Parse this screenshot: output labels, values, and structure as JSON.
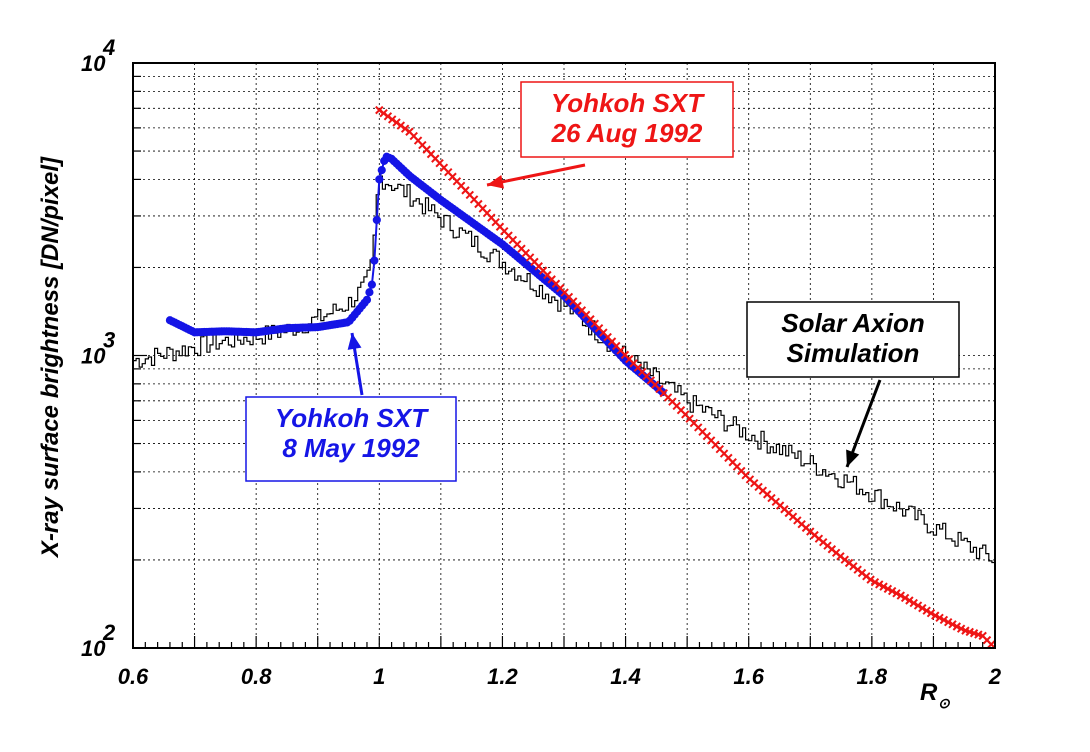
{
  "chart_data": {
    "type": "line",
    "title": "",
    "xlabel": "R",
    "xlabel_sub": "⊙",
    "ylabel": "X-ray  surface  brightness  [DN/pixel]",
    "xlim": [
      0.6,
      2.0
    ],
    "ylim": [
      100,
      10000
    ],
    "yscale": "log",
    "grid": true,
    "x_ticks": [
      0.6,
      0.8,
      1.0,
      1.2,
      1.4,
      1.6,
      1.8,
      2.0
    ],
    "x_tick_labels": [
      "0.6",
      "0.8",
      "1",
      "1.2",
      "1.4",
      "1.6",
      "1.8",
      "2"
    ],
    "y_tick_labels": [
      {
        "base": "10",
        "exp": "2",
        "value": 100
      },
      {
        "base": "10",
        "exp": "3",
        "value": 1000
      },
      {
        "base": "10",
        "exp": "4",
        "value": 10000
      }
    ],
    "series": [
      {
        "name": "Solar Axion Simulation",
        "color": "#000000",
        "style": "step",
        "x": [
          0.6,
          0.65,
          0.7,
          0.75,
          0.8,
          0.85,
          0.9,
          0.95,
          0.98,
          0.99,
          1.0,
          1.05,
          1.1,
          1.2,
          1.3,
          1.4,
          1.5,
          1.6,
          1.7,
          1.8,
          1.9,
          2.0
        ],
        "values": [
          960,
          1010,
          1070,
          1120,
          1160,
          1220,
          1330,
          1500,
          1750,
          2100,
          4100,
          3550,
          2950,
          2100,
          1500,
          1000,
          700,
          540,
          430,
          340,
          260,
          200
        ]
      },
      {
        "name": "Yohkoh SXT 8 May 1992",
        "color": "#1515e6",
        "style": "dots",
        "x": [
          0.66,
          0.7,
          0.75,
          0.8,
          0.85,
          0.9,
          0.95,
          0.98,
          0.99,
          1.0,
          1.01,
          1.02,
          1.05,
          1.1,
          1.2,
          1.3,
          1.4,
          1.46
        ],
        "values": [
          1320,
          1200,
          1210,
          1200,
          1240,
          1250,
          1300,
          1550,
          1800,
          4000,
          4800,
          4700,
          4100,
          3400,
          2400,
          1600,
          960,
          750
        ]
      },
      {
        "name": "Yohkoh SXT 26 Aug 1992",
        "color": "#ee1515",
        "style": "crosses",
        "x": [
          1.0,
          1.05,
          1.1,
          1.2,
          1.3,
          1.4,
          1.5,
          1.6,
          1.7,
          1.75,
          1.8,
          1.85,
          1.9,
          1.95,
          1.98,
          2.0
        ],
        "values": [
          6900,
          5800,
          4500,
          2700,
          1650,
          1000,
          620,
          380,
          250,
          205,
          170,
          150,
          130,
          115,
          110,
          100
        ]
      }
    ],
    "annotations": [
      {
        "name": "label-26aug",
        "lines": [
          "Yohkoh SXT",
          "26  Aug  1992"
        ],
        "color": "#ee1515",
        "points_to": [
          1.25,
          3300
        ]
      },
      {
        "name": "label-8may",
        "lines": [
          "Yohkoh SXT",
          "8  May  1992"
        ],
        "color": "#1515e6",
        "points_to": [
          0.95,
          1300
        ]
      },
      {
        "name": "label-axion",
        "lines": [
          "Solar  Axion",
          "Simulation"
        ],
        "color": "#000000",
        "points_to": [
          1.75,
          400
        ]
      }
    ]
  }
}
